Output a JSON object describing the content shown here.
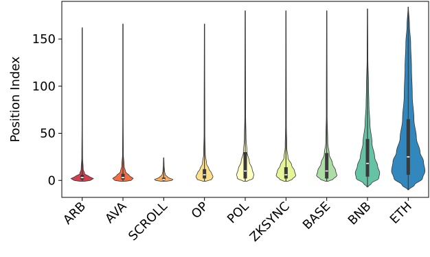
{
  "chart_data": {
    "type": "violin",
    "title": "",
    "xlabel": "",
    "ylabel": "Position Index",
    "ylim": [
      -18,
      190
    ],
    "yticks": [
      0,
      50,
      100,
      150
    ],
    "grid": false,
    "categories": [
      "ARB",
      "AVA",
      "SCROLL",
      "OP",
      "POL",
      "ZKSYNC",
      "BASE",
      "BNB",
      "ETH"
    ],
    "series": [
      {
        "category": "ARB",
        "color": "#d53e4f",
        "min": -1,
        "max": 162,
        "q1": 1,
        "median": 3,
        "q3": 6,
        "profile": [
          [
            -1,
            0.1
          ],
          [
            0,
            0.4
          ],
          [
            2,
            0.55
          ],
          [
            4,
            0.35
          ],
          [
            7,
            0.12
          ],
          [
            12,
            0.05
          ],
          [
            25,
            0.02
          ],
          [
            60,
            0.01
          ],
          [
            162,
            0.01
          ]
        ]
      },
      {
        "category": "AVA",
        "color": "#f46d43",
        "min": -1,
        "max": 166,
        "q1": 1,
        "median": 3,
        "q3": 7,
        "profile": [
          [
            -1,
            0.1
          ],
          [
            0,
            0.4
          ],
          [
            2,
            0.5
          ],
          [
            5,
            0.32
          ],
          [
            9,
            0.13
          ],
          [
            15,
            0.06
          ],
          [
            28,
            0.02
          ],
          [
            70,
            0.01
          ],
          [
            166,
            0.01
          ]
        ]
      },
      {
        "category": "SCROLL",
        "color": "#fdae61",
        "min": -1,
        "max": 24,
        "q1": 0,
        "median": 1,
        "q3": 3,
        "profile": [
          [
            -1,
            0.1
          ],
          [
            0,
            0.4
          ],
          [
            1,
            0.45
          ],
          [
            3,
            0.22
          ],
          [
            6,
            0.08
          ],
          [
            10,
            0.04
          ],
          [
            16,
            0.02
          ],
          [
            24,
            0.01
          ]
        ]
      },
      {
        "category": "OP",
        "color": "#fee08b",
        "min": -1,
        "max": 166,
        "q1": 2,
        "median": 6,
        "q3": 12,
        "profile": [
          [
            -1,
            0.05
          ],
          [
            1,
            0.35
          ],
          [
            4,
            0.42
          ],
          [
            8,
            0.34
          ],
          [
            12,
            0.22
          ],
          [
            18,
            0.1
          ],
          [
            28,
            0.04
          ],
          [
            50,
            0.02
          ],
          [
            166,
            0.01
          ]
        ]
      },
      {
        "category": "POL",
        "color": "#ffffbf",
        "min": -1,
        "max": 180,
        "q1": 2,
        "median": 10,
        "q3": 30,
        "profile": [
          [
            -1,
            0.08
          ],
          [
            2,
            0.38
          ],
          [
            6,
            0.42
          ],
          [
            12,
            0.34
          ],
          [
            20,
            0.2
          ],
          [
            30,
            0.09
          ],
          [
            45,
            0.04
          ],
          [
            70,
            0.02
          ],
          [
            180,
            0.01
          ]
        ]
      },
      {
        "category": "ZKSYNC",
        "color": "#e6f598",
        "min": -1,
        "max": 180,
        "q1": 2,
        "median": 6,
        "q3": 14,
        "profile": [
          [
            -1,
            0.08
          ],
          [
            1,
            0.3
          ],
          [
            5,
            0.48
          ],
          [
            10,
            0.42
          ],
          [
            16,
            0.28
          ],
          [
            24,
            0.1
          ],
          [
            35,
            0.04
          ],
          [
            60,
            0.02
          ],
          [
            180,
            0.01
          ]
        ]
      },
      {
        "category": "BASE",
        "color": "#abdda4",
        "min": -1,
        "max": 180,
        "q1": 2,
        "median": 10,
        "q3": 29,
        "profile": [
          [
            -1,
            0.05
          ],
          [
            1,
            0.3
          ],
          [
            5,
            0.5
          ],
          [
            10,
            0.44
          ],
          [
            18,
            0.28
          ],
          [
            28,
            0.12
          ],
          [
            40,
            0.05
          ],
          [
            70,
            0.02
          ],
          [
            180,
            0.01
          ]
        ]
      },
      {
        "category": "BNB",
        "color": "#66c2a5",
        "min": -7,
        "max": 182,
        "q1": 4,
        "median": 18,
        "q3": 44,
        "profile": [
          [
            -7,
            0.02
          ],
          [
            -3,
            0.2
          ],
          [
            2,
            0.55
          ],
          [
            8,
            0.6
          ],
          [
            15,
            0.5
          ],
          [
            25,
            0.35
          ],
          [
            40,
            0.22
          ],
          [
            60,
            0.12
          ],
          [
            80,
            0.07
          ],
          [
            100,
            0.05
          ],
          [
            130,
            0.02
          ],
          [
            182,
            0.01
          ]
        ]
      },
      {
        "category": "ETH",
        "color": "#3288bd",
        "min": -10,
        "max": 184,
        "q1": 6,
        "median": 25,
        "q3": 65,
        "profile": [
          [
            -10,
            0.02
          ],
          [
            -5,
            0.3
          ],
          [
            2,
            0.7
          ],
          [
            10,
            0.82
          ],
          [
            20,
            0.75
          ],
          [
            30,
            0.58
          ],
          [
            45,
            0.4
          ],
          [
            65,
            0.28
          ],
          [
            90,
            0.2
          ],
          [
            120,
            0.16
          ],
          [
            145,
            0.12
          ],
          [
            165,
            0.06
          ],
          [
            184,
            0.01
          ]
        ]
      }
    ]
  }
}
